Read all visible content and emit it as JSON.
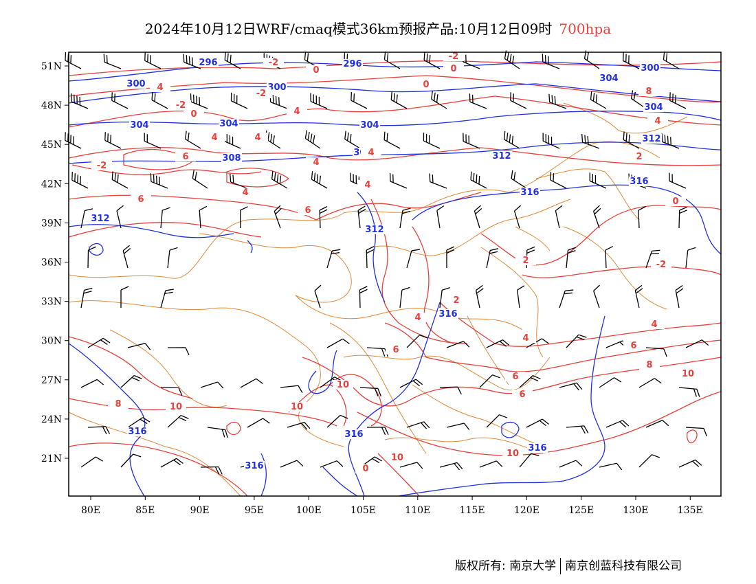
{
  "title": {
    "main": "2024年10月12日WRF/cmaq模式36km预报产品:10月12日09时",
    "level": "700hpa"
  },
  "colors": {
    "height": "#2030e0",
    "temperature": "#e8403a",
    "border": "#e08a3a",
    "wind": "#000000",
    "frame": "#000000"
  },
  "axes": {
    "lat_labels": [
      "51N",
      "48N",
      "45N",
      "42N",
      "39N",
      "36N",
      "33N",
      "30N",
      "27N",
      "24N",
      "21N"
    ],
    "lon_labels": [
      "80E",
      "85E",
      "90E",
      "95E",
      "100E",
      "105E",
      "110E",
      "115E",
      "120E",
      "125E",
      "130E",
      "135E"
    ]
  },
  "height_contours": [
    {
      "label": "296"
    },
    {
      "label": "300"
    },
    {
      "label": "304"
    },
    {
      "label": "308"
    },
    {
      "label": "312"
    },
    {
      "label": "316"
    }
  ],
  "temperature_contours": [
    {
      "label": "-2"
    },
    {
      "label": "0"
    },
    {
      "label": "2"
    },
    {
      "label": "4"
    },
    {
      "label": "6"
    },
    {
      "label": "8"
    },
    {
      "label": "10"
    }
  ],
  "footer": {
    "copyright": "版权所有: 南京大学",
    "company": "南京创蓝科技有限公司"
  }
}
